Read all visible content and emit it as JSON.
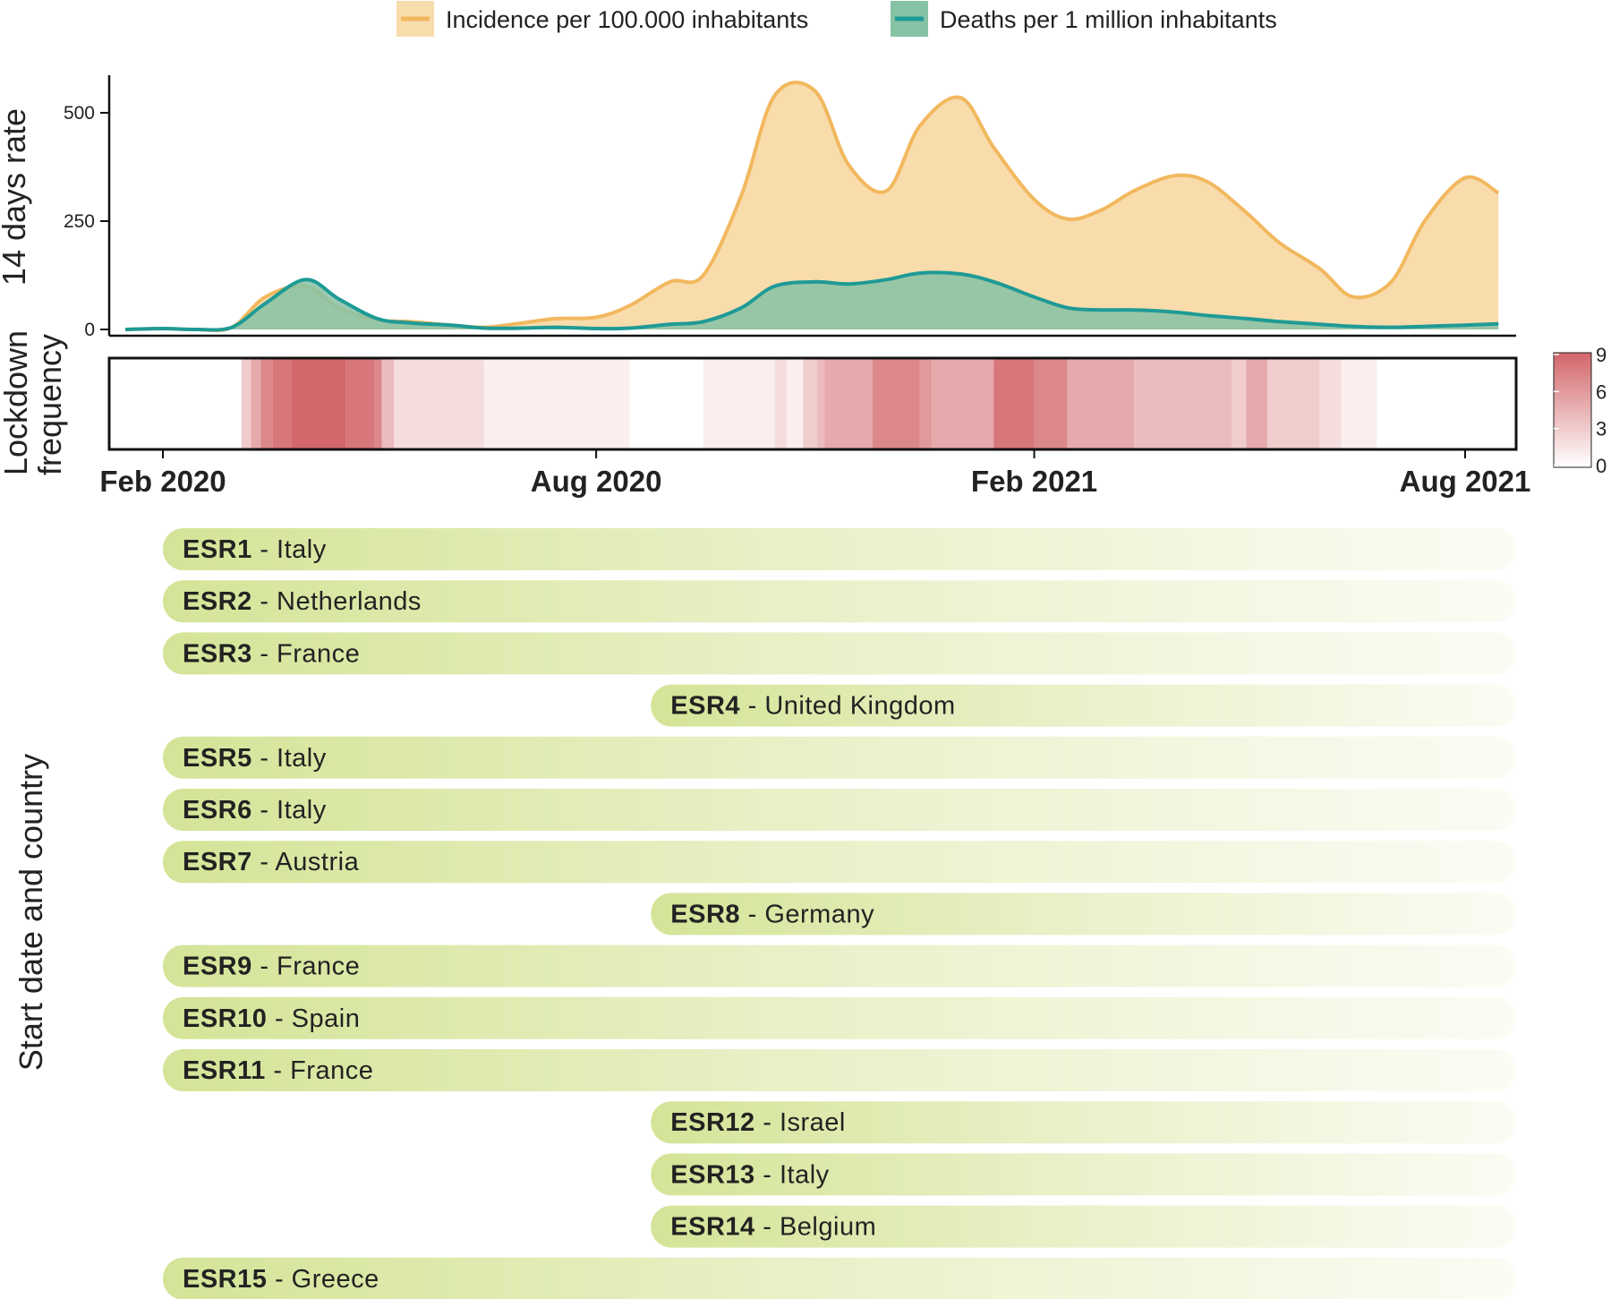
{
  "chart_data": [
    {
      "type": "area",
      "ylabel": "14 days rate",
      "xticks": [
        "Feb 2020",
        "Aug 2020",
        "Feb 2021",
        "Aug 2021"
      ],
      "yticks": [
        0,
        250,
        500
      ],
      "ylim": [
        0,
        600
      ],
      "series": [
        {
          "name": "Incidence per 100.000 inhabitants",
          "color": "#f2b85e",
          "fill": "#f8dcac",
          "x": [
            "2020-01-15",
            "2020-02-01",
            "2020-02-15",
            "2020-03-01",
            "2020-03-15",
            "2020-04-01",
            "2020-04-15",
            "2020-05-01",
            "2020-05-15",
            "2020-06-01",
            "2020-06-15",
            "2020-07-01",
            "2020-07-15",
            "2020-08-01",
            "2020-08-15",
            "2020-09-01",
            "2020-09-15",
            "2020-10-01",
            "2020-10-15",
            "2020-11-01",
            "2020-11-15",
            "2020-12-01",
            "2020-12-15",
            "2021-01-01",
            "2021-01-15",
            "2021-02-01",
            "2021-02-15",
            "2021-03-01",
            "2021-03-15",
            "2021-04-01",
            "2021-04-15",
            "2021-05-01",
            "2021-05-15",
            "2021-06-01",
            "2021-06-15",
            "2021-07-01",
            "2021-07-15",
            "2021-08-01",
            "2021-08-15"
          ],
          "y": [
            0,
            2,
            0,
            5,
            75,
            100,
            50,
            22,
            18,
            10,
            5,
            15,
            25,
            28,
            55,
            110,
            125,
            310,
            540,
            550,
            380,
            320,
            470,
            535,
            420,
            300,
            255,
            275,
            320,
            355,
            340,
            270,
            200,
            140,
            75,
            110,
            250,
            350,
            315
          ]
        },
        {
          "name": "Deaths per 1 million inhabitants",
          "color": "#1f9a96",
          "fill": "#86c2a4",
          "x": [
            "2020-01-15",
            "2020-02-01",
            "2020-02-15",
            "2020-03-01",
            "2020-03-15",
            "2020-04-01",
            "2020-04-15",
            "2020-05-01",
            "2020-05-15",
            "2020-06-01",
            "2020-06-15",
            "2020-07-01",
            "2020-07-15",
            "2020-08-01",
            "2020-08-15",
            "2020-09-01",
            "2020-09-15",
            "2020-10-01",
            "2020-10-15",
            "2020-11-01",
            "2020-11-15",
            "2020-12-01",
            "2020-12-15",
            "2021-01-01",
            "2021-01-15",
            "2021-02-01",
            "2021-02-15",
            "2021-03-01",
            "2021-03-15",
            "2021-04-01",
            "2021-04-15",
            "2021-05-01",
            "2021-05-15",
            "2021-06-01",
            "2021-06-15",
            "2021-07-01",
            "2021-07-15",
            "2021-08-01",
            "2021-08-15"
          ],
          "y": [
            0,
            2,
            0,
            5,
            60,
            115,
            70,
            25,
            15,
            10,
            3,
            3,
            5,
            2,
            3,
            12,
            18,
            50,
            100,
            110,
            105,
            115,
            130,
            128,
            110,
            75,
            50,
            45,
            45,
            40,
            32,
            25,
            18,
            12,
            7,
            5,
            7,
            10,
            13
          ]
        }
      ]
    },
    {
      "type": "heatmap",
      "ylabel": "Lockdown frequency",
      "colorbar": {
        "ticks": [
          0,
          3,
          6,
          9
        ],
        "low_color": "#ffffff",
        "high_color": "#d2666a"
      },
      "bands": [
        {
          "start": "2020-03-05",
          "end": "2020-03-09",
          "value": 3
        },
        {
          "start": "2020-03-09",
          "end": "2020-03-13",
          "value": 5
        },
        {
          "start": "2020-03-13",
          "end": "2020-03-18",
          "value": 7
        },
        {
          "start": "2020-03-18",
          "end": "2020-03-26",
          "value": 8
        },
        {
          "start": "2020-03-26",
          "end": "2020-04-18",
          "value": 9
        },
        {
          "start": "2020-04-18",
          "end": "2020-04-30",
          "value": 8
        },
        {
          "start": "2020-04-30",
          "end": "2020-05-03",
          "value": 7
        },
        {
          "start": "2020-05-03",
          "end": "2020-05-08",
          "value": 4
        },
        {
          "start": "2020-05-08",
          "end": "2020-06-15",
          "value": 2
        },
        {
          "start": "2020-06-15",
          "end": "2020-08-15",
          "value": 1
        },
        {
          "start": "2020-08-15",
          "end": "2020-09-15",
          "value": 0
        },
        {
          "start": "2020-09-15",
          "end": "2020-10-15",
          "value": 1
        },
        {
          "start": "2020-10-15",
          "end": "2020-10-20",
          "value": 2
        },
        {
          "start": "2020-10-20",
          "end": "2020-10-27",
          "value": 1
        },
        {
          "start": "2020-10-27",
          "end": "2020-11-02",
          "value": 3
        },
        {
          "start": "2020-11-02",
          "end": "2020-11-05",
          "value": 4
        },
        {
          "start": "2020-11-05",
          "end": "2020-11-25",
          "value": 5
        },
        {
          "start": "2020-11-25",
          "end": "2020-12-15",
          "value": 7
        },
        {
          "start": "2020-12-15",
          "end": "2020-12-20",
          "value": 6
        },
        {
          "start": "2020-12-20",
          "end": "2021-01-15",
          "value": 5
        },
        {
          "start": "2021-01-15",
          "end": "2021-02-01",
          "value": 8
        },
        {
          "start": "2021-02-01",
          "end": "2021-02-15",
          "value": 7
        },
        {
          "start": "2021-02-15",
          "end": "2021-03-15",
          "value": 5
        },
        {
          "start": "2021-03-15",
          "end": "2021-04-25",
          "value": 4
        },
        {
          "start": "2021-04-25",
          "end": "2021-05-01",
          "value": 3
        },
        {
          "start": "2021-05-01",
          "end": "2021-05-10",
          "value": 5
        },
        {
          "start": "2021-05-10",
          "end": "2021-06-01",
          "value": 3
        },
        {
          "start": "2021-06-01",
          "end": "2021-06-10",
          "value": 2
        },
        {
          "start": "2021-06-10",
          "end": "2021-06-25",
          "value": 1
        }
      ]
    },
    {
      "type": "bar",
      "ylabel": "Start date and country",
      "bar_end": "2021-08-25",
      "bars": [
        {
          "code": "ESR1",
          "country": "Italy",
          "start": "2020-02-01"
        },
        {
          "code": "ESR2",
          "country": "Netherlands",
          "start": "2020-02-01"
        },
        {
          "code": "ESR3",
          "country": "France",
          "start": "2020-02-01"
        },
        {
          "code": "ESR4",
          "country": "United Kingdom",
          "start": "2020-08-24"
        },
        {
          "code": "ESR5",
          "country": "Italy",
          "start": "2020-02-01"
        },
        {
          "code": "ESR6",
          "country": "Italy",
          "start": "2020-02-01"
        },
        {
          "code": "ESR7",
          "country": "Austria",
          "start": "2020-02-01"
        },
        {
          "code": "ESR8",
          "country": "Germany",
          "start": "2020-08-24"
        },
        {
          "code": "ESR9",
          "country": "France",
          "start": "2020-02-01"
        },
        {
          "code": "ESR10",
          "country": "Spain",
          "start": "2020-02-01"
        },
        {
          "code": "ESR11",
          "country": "France",
          "start": "2020-02-01"
        },
        {
          "code": "ESR12",
          "country": "Israel",
          "start": "2020-08-24"
        },
        {
          "code": "ESR13",
          "country": "Italy",
          "start": "2020-08-24"
        },
        {
          "code": "ESR14",
          "country": "Belgium",
          "start": "2020-08-24"
        },
        {
          "code": "ESR15",
          "country": "Greece",
          "start": "2020-02-01"
        }
      ],
      "bar_color": "#d4e497"
    }
  ]
}
